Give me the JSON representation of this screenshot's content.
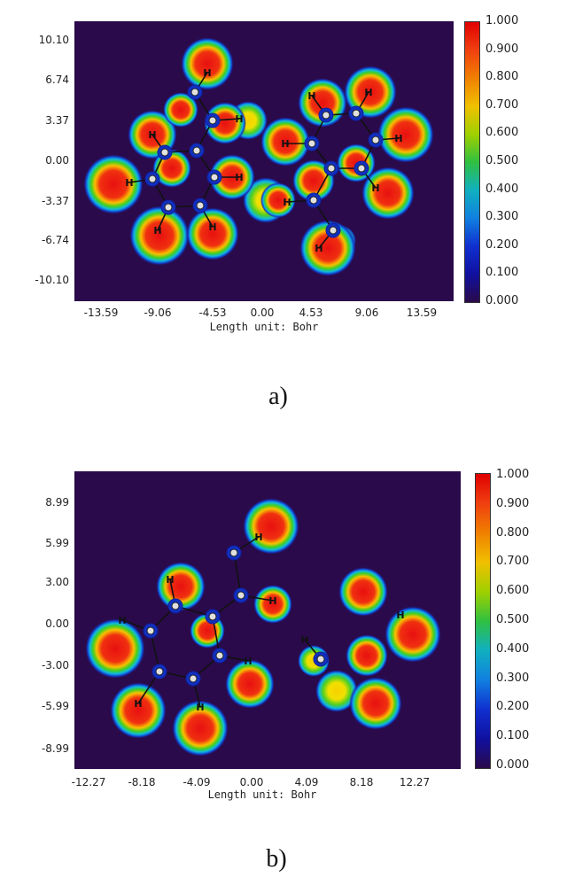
{
  "figure": {
    "panels": [
      {
        "id": "a",
        "label": "a)",
        "xlabel": "Length unit: Bohr",
        "yticks": [
          "10.10",
          "6.74",
          "3.37",
          "0.00",
          "-3.37",
          "-6.74",
          "-10.10"
        ],
        "xticks": [
          "-13.59",
          "-9.06",
          "-4.53",
          "0.00",
          "4.53",
          "9.06",
          "13.59"
        ],
        "colorbar_ticks": [
          "1.000",
          "0.900",
          "0.800",
          "0.700",
          "0.600",
          "0.500",
          "0.400",
          "0.300",
          "0.200",
          "0.100",
          "0.000"
        ],
        "atom_label": "H"
      },
      {
        "id": "b",
        "label": "b)",
        "xlabel": "Length unit: Bohr",
        "yticks": [
          "8.99",
          "5.99",
          "3.00",
          "0.00",
          "-3.00",
          "-5.99",
          "-8.99"
        ],
        "xticks": [
          "-12.27",
          "-8.18",
          "-4.09",
          "0.00",
          "4.09",
          "8.18",
          "12.27"
        ],
        "colorbar_ticks": [
          "1.000",
          "0.900",
          "0.800",
          "0.700",
          "0.600",
          "0.500",
          "0.400",
          "0.300",
          "0.200",
          "0.100",
          "0.000"
        ],
        "atom_label": "H"
      }
    ]
  },
  "chart_data": [
    {
      "type": "heatmap",
      "title": "",
      "xlabel": "Length unit: Bohr",
      "ylabel": "",
      "xlim": [
        -15.8,
        15.8
      ],
      "ylim": [
        -11.8,
        11.8
      ],
      "x_ticks": [
        -13.59,
        -9.06,
        -4.53,
        0.0,
        4.53,
        9.06,
        13.59
      ],
      "y_ticks": [
        10.1,
        6.74,
        3.37,
        0.0,
        -3.37,
        -6.74,
        -10.1
      ],
      "colorbar_range": [
        0.0,
        1.0
      ],
      "colorbar_ticks": [
        1.0,
        0.9,
        0.8,
        0.7,
        0.6,
        0.5,
        0.4,
        0.3,
        0.2,
        0.1,
        0.0
      ]
    },
    {
      "type": "heatmap",
      "title": "",
      "xlabel": "Length unit: Bohr",
      "ylabel": "",
      "xlim": [
        -14.5,
        14.5
      ],
      "ylim": [
        -10.8,
        10.8
      ],
      "x_ticks": [
        -12.27,
        -8.18,
        -4.09,
        0.0,
        4.09,
        8.18,
        12.27
      ],
      "y_ticks": [
        8.99,
        5.99,
        3.0,
        0.0,
        -3.0,
        -5.99,
        -8.99
      ],
      "colorbar_range": [
        0.0,
        1.0
      ],
      "colorbar_ticks": [
        1.0,
        0.9,
        0.8,
        0.7,
        0.6,
        0.5,
        0.4,
        0.3,
        0.2,
        0.1,
        0.0
      ]
    }
  ]
}
